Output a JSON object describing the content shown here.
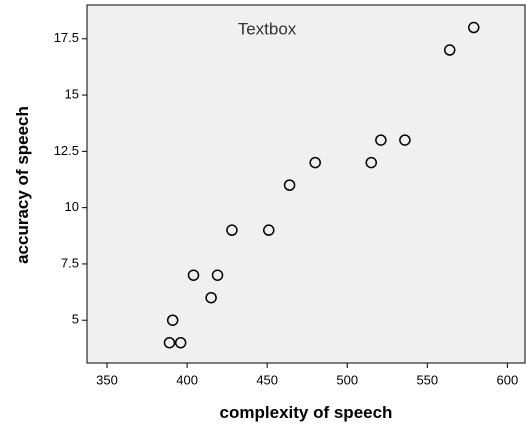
{
  "chart_data": {
    "type": "scatter",
    "x_label": "complexity of speech",
    "y_label": "accuracy of speech",
    "annotation": "Textbox",
    "series": [
      {
        "color": "#000000",
        "x": [
          389,
          396,
          391,
          404,
          419,
          415,
          428,
          451,
          464,
          480,
          515,
          521,
          536,
          564,
          579
        ],
        "values": [
          4,
          4,
          5,
          7,
          7,
          6,
          9,
          9,
          11,
          12,
          12,
          13,
          13,
          17,
          18
        ]
      }
    ],
    "xlim": [
      337.5,
      611
    ],
    "xticks": [
      350,
      400,
      450,
      500,
      550,
      600
    ],
    "ylim": [
      3.1,
      19
    ],
    "yticks": [
      5,
      7.5,
      10,
      12.5,
      15,
      17.5
    ],
    "background": "#f0f0f0"
  }
}
